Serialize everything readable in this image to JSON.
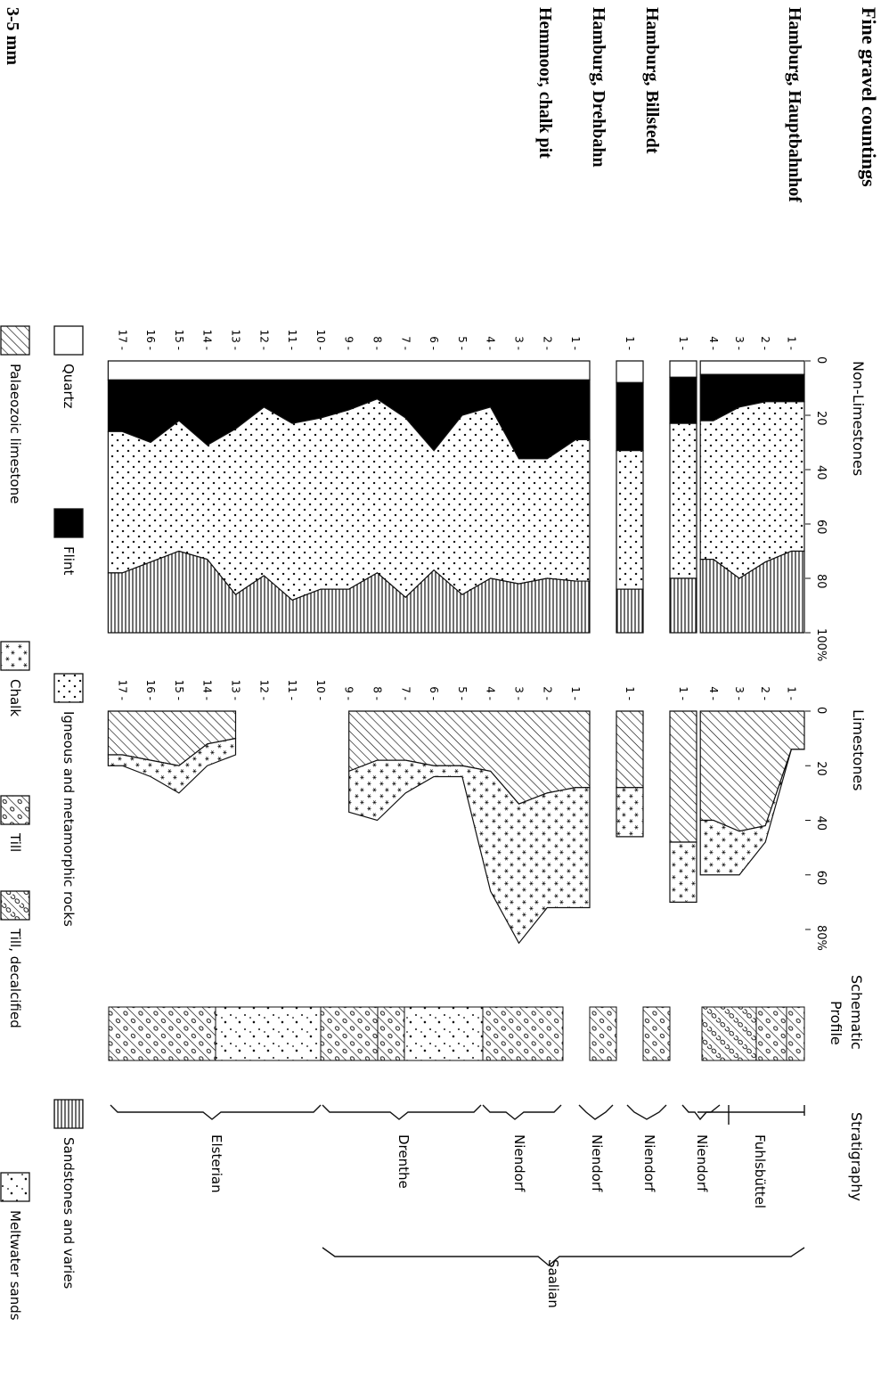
{
  "figure": {
    "title": "Fine gravel countings",
    "size_label": "3-5 mm",
    "sites": [
      "Hamburg, Hauptbahnhof",
      "Hamburg, Billstedt",
      "Hamburg, Drehbahn",
      "Hemmoor, chalk pit"
    ]
  },
  "headers": {
    "non_limestones": "Non-Limestones",
    "limestones": "Limestones",
    "schematic": "Schematic",
    "profile": "Profile",
    "stratigraphy": "Stratigraphy"
  },
  "legend": [
    {
      "label": "Quartz",
      "pattern": "quartz"
    },
    {
      "label": "Flint",
      "pattern": "flint"
    },
    {
      "label": "Igneous and metamorphic rocks",
      "pattern": "igneous"
    },
    {
      "label": "Sandstones and varies",
      "pattern": "sandstone"
    },
    {
      "label": "Palaeozoic limestone",
      "pattern": "palaeozoic"
    },
    {
      "label": "Chalk",
      "pattern": "chalk"
    },
    {
      "label": "Till",
      "pattern": "till"
    },
    {
      "label": "Till, decalcified",
      "pattern": "tilldec"
    },
    {
      "label": "Meltwater sands",
      "pattern": "meltwater"
    }
  ],
  "colors": {
    "ink": "#111111",
    "paper": "#ffffff"
  },
  "chart_data": [
    {
      "type": "area",
      "title": "Non-Limestones",
      "value_axis": {
        "range": [
          0,
          100
        ],
        "ticks": [
          "0",
          "20",
          "40",
          "60",
          "80",
          "100%"
        ]
      },
      "note": "cumulative boundaries in percent (quartz | flint | igneous and metamorphic | sandstones)",
      "panels": [
        {
          "site": "Hamburg, Hauptbahnhof",
          "samples": [
            "1",
            "2",
            "3",
            "4"
          ],
          "quartz_end": [
            5,
            5,
            5,
            5
          ],
          "flint_end": [
            15,
            15,
            17,
            22
          ],
          "igneous_end": [
            70,
            74,
            80,
            73
          ]
        },
        {
          "site": "Hamburg, Billstedt",
          "samples": [
            "1"
          ],
          "quartz_end": [
            6
          ],
          "flint_end": [
            23
          ],
          "igneous_end": [
            80
          ]
        },
        {
          "site": "Hamburg, Drehbahn",
          "samples": [
            "1"
          ],
          "quartz_end": [
            8
          ],
          "flint_end": [
            33
          ],
          "igneous_end": [
            84
          ]
        },
        {
          "site": "Hemmoor, chalk pit",
          "samples": [
            "1",
            "2",
            "3",
            "4",
            "5",
            "6",
            "7",
            "8",
            "9",
            "10",
            "11",
            "12",
            "13",
            "14",
            "15",
            "16",
            "17"
          ],
          "quartz_end": [
            7,
            7,
            7,
            7,
            7,
            7,
            7,
            7,
            7,
            7,
            7,
            7,
            7,
            7,
            7,
            7,
            7
          ],
          "flint_end": [
            29,
            36,
            36,
            17,
            20,
            33,
            21,
            14,
            18,
            21,
            23,
            17,
            25,
            31,
            22,
            30,
            26
          ],
          "igneous_end": [
            81,
            80,
            82,
            80,
            86,
            77,
            87,
            78,
            84,
            84,
            88,
            79,
            86,
            73,
            70,
            74,
            78
          ]
        }
      ]
    },
    {
      "type": "area",
      "title": "Limestones",
      "value_axis": {
        "range": [
          0,
          80
        ],
        "ticks": [
          "0",
          "20",
          "40",
          "60",
          "80%"
        ]
      },
      "note": "cumulative boundaries in percent (palaeozoic limestone | chalk)",
      "panels": [
        {
          "site": "Hamburg, Hauptbahnhof",
          "samples": [
            "1",
            "2",
            "3",
            "4"
          ],
          "palaeozoic_end": [
            14,
            42,
            44,
            40
          ],
          "chalk_end": [
            14,
            48,
            60,
            60
          ]
        },
        {
          "site": "Hamburg, Billstedt",
          "samples": [
            "1"
          ],
          "palaeozoic_end": [
            48
          ],
          "chalk_end": [
            70
          ]
        },
        {
          "site": "Hamburg, Drehbahn",
          "samples": [
            "1"
          ],
          "palaeozoic_end": [
            28
          ],
          "chalk_end": [
            46
          ]
        },
        {
          "site": "Hemmoor, chalk pit",
          "samples": [
            "1",
            "2",
            "3",
            "4",
            "5",
            "6",
            "7",
            "8",
            "9",
            "10",
            "11",
            "12",
            "13",
            "14",
            "15",
            "16",
            "17"
          ],
          "palaeozoic_end": [
            28,
            30,
            34,
            22,
            20,
            20,
            18,
            18,
            22,
            null,
            null,
            null,
            10,
            12,
            20,
            18,
            16
          ],
          "chalk_end": [
            72,
            72,
            85,
            66,
            24,
            24,
            30,
            40,
            37,
            null,
            null,
            null,
            16,
            20,
            30,
            24,
            20
          ]
        }
      ]
    }
  ],
  "stratigraphy": {
    "Fuhlsbuettel": "Fuhlsbüttel",
    "Niendorf": "Niendorf",
    "Drenthe": "Drenthe",
    "Elsterian": "Elsterian",
    "Saalian": "Saalian"
  }
}
